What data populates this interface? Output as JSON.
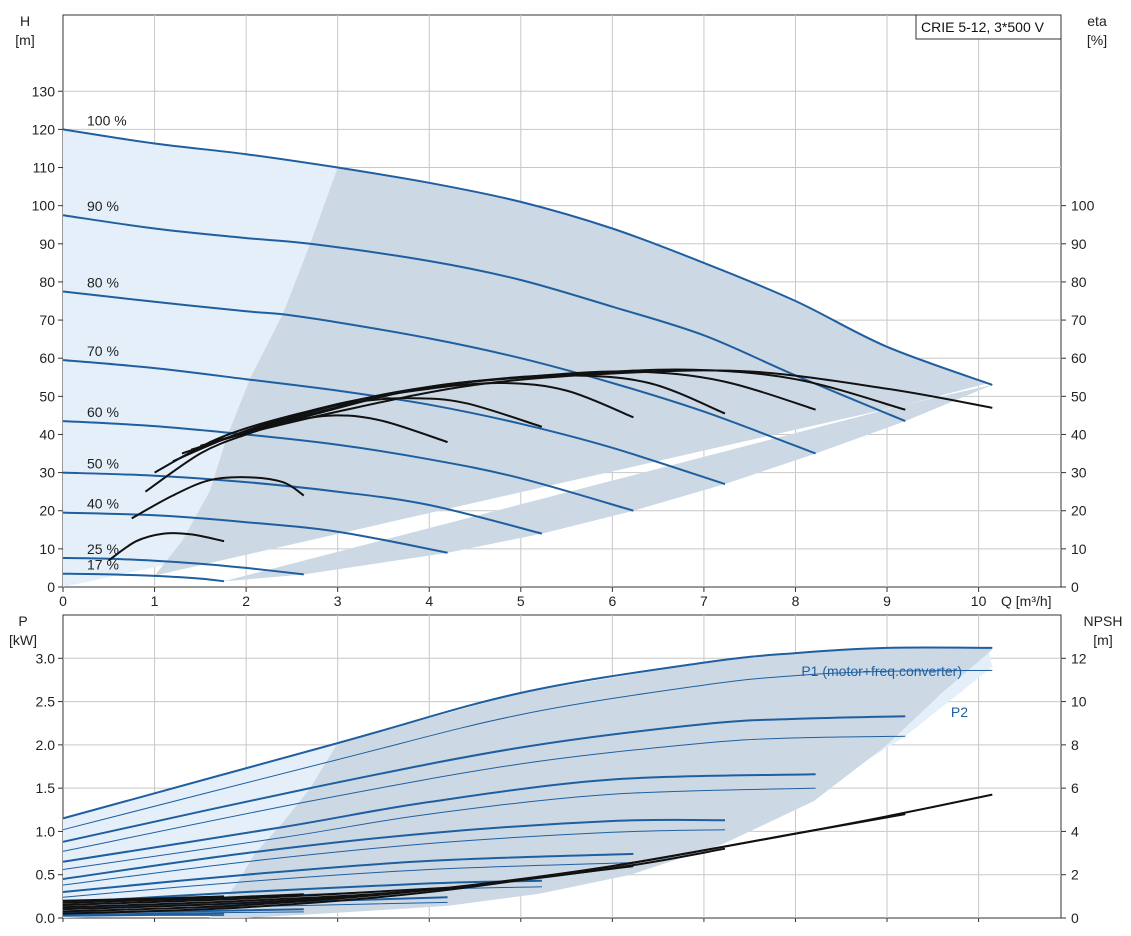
{
  "model_label": "CRIE 5-12, 3*500 V",
  "colors": {
    "pump": "#1f5fa0",
    "eff": "#111111",
    "region": "#ccd9e5",
    "region_light": "#e4eff9",
    "grid": "#c8c8c8"
  },
  "chart_data": [
    {
      "type": "line",
      "id": "head",
      "xlabel": "Q [m³/h]",
      "ylabel": "H\n[m]",
      "y2label": "eta\n[%]",
      "xlim": [
        0,
        10.9
      ],
      "ylim": [
        0,
        150
      ],
      "y2lim": [
        0,
        150
      ],
      "x_ticks": [
        0,
        1,
        2,
        3,
        4,
        5,
        6,
        7,
        8,
        9,
        10
      ],
      "y_ticks": [
        0,
        10,
        20,
        30,
        40,
        50,
        60,
        70,
        80,
        90,
        100,
        110,
        120,
        130
      ],
      "y2_ticks": [
        0,
        10,
        20,
        30,
        40,
        50,
        60,
        70,
        80,
        90,
        100
      ],
      "grid": true,
      "curves": [
        {
          "speed": "100 %",
          "x": [
            0,
            1,
            2,
            3,
            4,
            5,
            6,
            7,
            8,
            9,
            10.15
          ],
          "y": [
            120,
            116.3,
            113.5,
            110,
            106,
            101,
            94,
            85,
            75,
            63,
            53
          ]
        },
        {
          "speed": "90 %",
          "x": [
            0,
            1,
            2,
            2.7,
            4,
            5,
            6,
            7,
            8,
            9.2
          ],
          "y": [
            97.5,
            94,
            91.5,
            90,
            85.5,
            80.5,
            73.5,
            66,
            55.5,
            43.5
          ]
        },
        {
          "speed": "80 %",
          "x": [
            0,
            1,
            2,
            2.4,
            3,
            4,
            5,
            6,
            7,
            8.22
          ],
          "y": [
            77.5,
            74.8,
            72.3,
            71.5,
            69.4,
            65.2,
            60,
            53.5,
            46,
            35
          ]
        },
        {
          "speed": "70 %",
          "x": [
            0,
            1,
            2,
            3,
            4,
            5,
            6,
            7.23
          ],
          "y": [
            59.5,
            57.4,
            54.5,
            51.5,
            47.8,
            42.8,
            36.5,
            27
          ]
        },
        {
          "speed": "60 %",
          "x": [
            0,
            1,
            2,
            3,
            4,
            5,
            6.23
          ],
          "y": [
            43.5,
            42.2,
            40,
            37.3,
            33.5,
            28.5,
            20
          ]
        },
        {
          "speed": "50 %",
          "x": [
            0,
            1,
            2,
            3,
            4,
            5.23
          ],
          "y": [
            30,
            29.2,
            27.5,
            25,
            21.5,
            14
          ]
        },
        {
          "speed": "40 %",
          "x": [
            0,
            1,
            2,
            3,
            4.2
          ],
          "y": [
            19.5,
            18.8,
            17,
            14.5,
            9
          ]
        },
        {
          "speed": "25 %",
          "x": [
            0,
            0.5,
            1,
            1.5,
            2,
            2.63
          ],
          "y": [
            7.6,
            7.4,
            6.9,
            6.1,
            5,
            3.3
          ]
        },
        {
          "speed": "17 %",
          "x": [
            0,
            0.5,
            1,
            1.5,
            1.76
          ],
          "y": [
            3.5,
            3.3,
            2.9,
            2.2,
            1.5
          ]
        }
      ],
      "efficiency": [
        {
          "x": [
            0.5,
            0.8,
            1.1,
            1.4,
            1.76
          ],
          "y": [
            7,
            12,
            14,
            13.8,
            12
          ]
        },
        {
          "x": [
            0.75,
            1.2,
            1.6,
            2,
            2.4,
            2.63
          ],
          "y": [
            18,
            24,
            28,
            28.8,
            27.5,
            24
          ]
        },
        {
          "x": [
            0.9,
            1.5,
            2,
            2.5,
            3,
            3.5,
            4.2
          ],
          "y": [
            25,
            35,
            40,
            43.5,
            45,
            43.5,
            38
          ]
        },
        {
          "x": [
            1.0,
            1.7,
            2.5,
            3.2,
            3.8,
            4.4,
            5.23
          ],
          "y": [
            30,
            39,
            45,
            48.5,
            49.5,
            48.2,
            42
          ]
        },
        {
          "x": [
            1.2,
            2,
            3,
            4,
            4.8,
            5.5,
            6.23
          ],
          "y": [
            33,
            41,
            48,
            52,
            53.5,
            51.5,
            44.5
          ]
        },
        {
          "x": [
            1.3,
            2.3,
            3.4,
            4.5,
            5.5,
            6.4,
            7.23
          ],
          "y": [
            35,
            43,
            50,
            54,
            55.5,
            53.5,
            45.5
          ]
        },
        {
          "x": [
            1.4,
            2.5,
            3.8,
            5,
            6.2,
            7.2,
            8.22
          ],
          "y": [
            36,
            44,
            51.5,
            55,
            56.5,
            54,
            46.5
          ]
        },
        {
          "x": [
            1.5,
            2.7,
            4,
            5.4,
            6.8,
            8,
            9.2
          ],
          "y": [
            37,
            45,
            52.5,
            55.5,
            57,
            54.5,
            46.5
          ]
        },
        {
          "x": [
            1.6,
            3,
            4.5,
            6,
            7.5,
            9,
            10.15
          ],
          "y": [
            38,
            46,
            53,
            56,
            56.5,
            52,
            47
          ]
        }
      ]
    },
    {
      "type": "line",
      "id": "power",
      "xlabel": "",
      "ylabel": "P\n[kW]",
      "y2label": "NPSH\n[m]",
      "xlim": [
        0,
        10.9
      ],
      "ylim": [
        0,
        3.5
      ],
      "y2lim": [
        0,
        14
      ],
      "y_ticks": [
        0,
        0.5,
        1.0,
        1.5,
        2.0,
        2.5,
        3.0
      ],
      "y_tick_labels": [
        "0.0",
        "0.5",
        "1.0",
        "1.5",
        "2.0",
        "2.5",
        "3.0"
      ],
      "y2_ticks": [
        0,
        2,
        4,
        6,
        8,
        10,
        12
      ],
      "grid": true,
      "series_labels": {
        "p1": "P1 (motor+freq.converter)",
        "p2": "P2"
      },
      "p1_curves": [
        {
          "x": [
            0,
            3,
            5,
            7,
            8,
            9,
            10.15
          ],
          "y": [
            1.15,
            2.02,
            2.6,
            2.95,
            3.06,
            3.12,
            3.12
          ]
        },
        {
          "x": [
            0,
            2.7,
            5,
            7,
            8,
            9.2
          ],
          "y": [
            0.88,
            1.5,
            1.97,
            2.24,
            2.3,
            2.33
          ]
        },
        {
          "x": [
            0,
            2.4,
            4,
            6,
            8.22
          ],
          "y": [
            0.65,
            1.05,
            1.34,
            1.6,
            1.66
          ]
        },
        {
          "x": [
            0,
            2,
            4,
            6,
            7.23
          ],
          "y": [
            0.45,
            0.75,
            0.98,
            1.12,
            1.13
          ]
        },
        {
          "x": [
            0,
            2,
            4,
            6.23
          ],
          "y": [
            0.3,
            0.5,
            0.66,
            0.74
          ]
        },
        {
          "x": [
            0,
            2,
            4,
            5.23
          ],
          "y": [
            0.18,
            0.3,
            0.4,
            0.43
          ]
        },
        {
          "x": [
            0,
            2,
            4.2
          ],
          "y": [
            0.11,
            0.17,
            0.24
          ]
        },
        {
          "x": [
            0,
            1.5,
            2.63
          ],
          "y": [
            0.06,
            0.08,
            0.1
          ]
        },
        {
          "x": [
            0,
            1,
            1.76
          ],
          "y": [
            0.03,
            0.04,
            0.05
          ]
        }
      ],
      "p2_curves": [
        {
          "x": [
            0,
            3,
            5,
            7,
            8,
            9,
            10.15
          ],
          "y": [
            1.02,
            1.83,
            2.35,
            2.69,
            2.8,
            2.85,
            2.86
          ]
        },
        {
          "x": [
            0,
            2.7,
            5,
            7,
            8,
            9.2
          ],
          "y": [
            0.77,
            1.35,
            1.78,
            2.02,
            2.08,
            2.1
          ]
        },
        {
          "x": [
            0,
            2.4,
            4,
            6,
            8.22
          ],
          "y": [
            0.56,
            0.93,
            1.2,
            1.43,
            1.5
          ]
        },
        {
          "x": [
            0,
            2,
            4,
            6,
            7.23
          ],
          "y": [
            0.38,
            0.65,
            0.86,
            0.99,
            1.02
          ]
        },
        {
          "x": [
            0,
            2,
            4,
            6.23
          ],
          "y": [
            0.24,
            0.42,
            0.56,
            0.64
          ]
        },
        {
          "x": [
            0,
            2,
            4,
            5.23
          ],
          "y": [
            0.14,
            0.24,
            0.33,
            0.36
          ]
        },
        {
          "x": [
            0,
            2,
            4.2
          ],
          "y": [
            0.08,
            0.13,
            0.18
          ]
        },
        {
          "x": [
            0,
            1.5,
            2.63
          ],
          "y": [
            0.04,
            0.06,
            0.07
          ]
        },
        {
          "x": [
            0,
            1,
            1.76
          ],
          "y": [
            0.02,
            0.03,
            0.03
          ]
        }
      ],
      "npsh_curves": [
        {
          "x": [
            0,
            2,
            4,
            6,
            8,
            9,
            10.15
          ],
          "y": [
            0.2,
            0.5,
            1.2,
            2.4,
            3.9,
            4.7,
            5.7
          ]
        },
        {
          "x": [
            0,
            2,
            4,
            6,
            8,
            9.2
          ],
          "y": [
            0.3,
            0.6,
            1.3,
            2.4,
            3.9,
            4.8
          ]
        },
        {
          "x": [
            0,
            2,
            4,
            6,
            7.23
          ],
          "y": [
            0.4,
            0.7,
            1.3,
            2.3,
            3.2
          ]
        },
        {
          "x": [
            0,
            2,
            4,
            6.23
          ],
          "y": [
            0.5,
            0.8,
            1.3,
            2.4
          ]
        },
        {
          "x": [
            0,
            2,
            4.2
          ],
          "y": [
            0.6,
            0.9,
            1.4
          ]
        },
        {
          "x": [
            0,
            1.5,
            2.63
          ],
          "y": [
            0.7,
            0.9,
            1.1
          ]
        },
        {
          "x": [
            0,
            1,
            1.76
          ],
          "y": [
            0.8,
            0.9,
            1.0
          ]
        }
      ]
    }
  ]
}
